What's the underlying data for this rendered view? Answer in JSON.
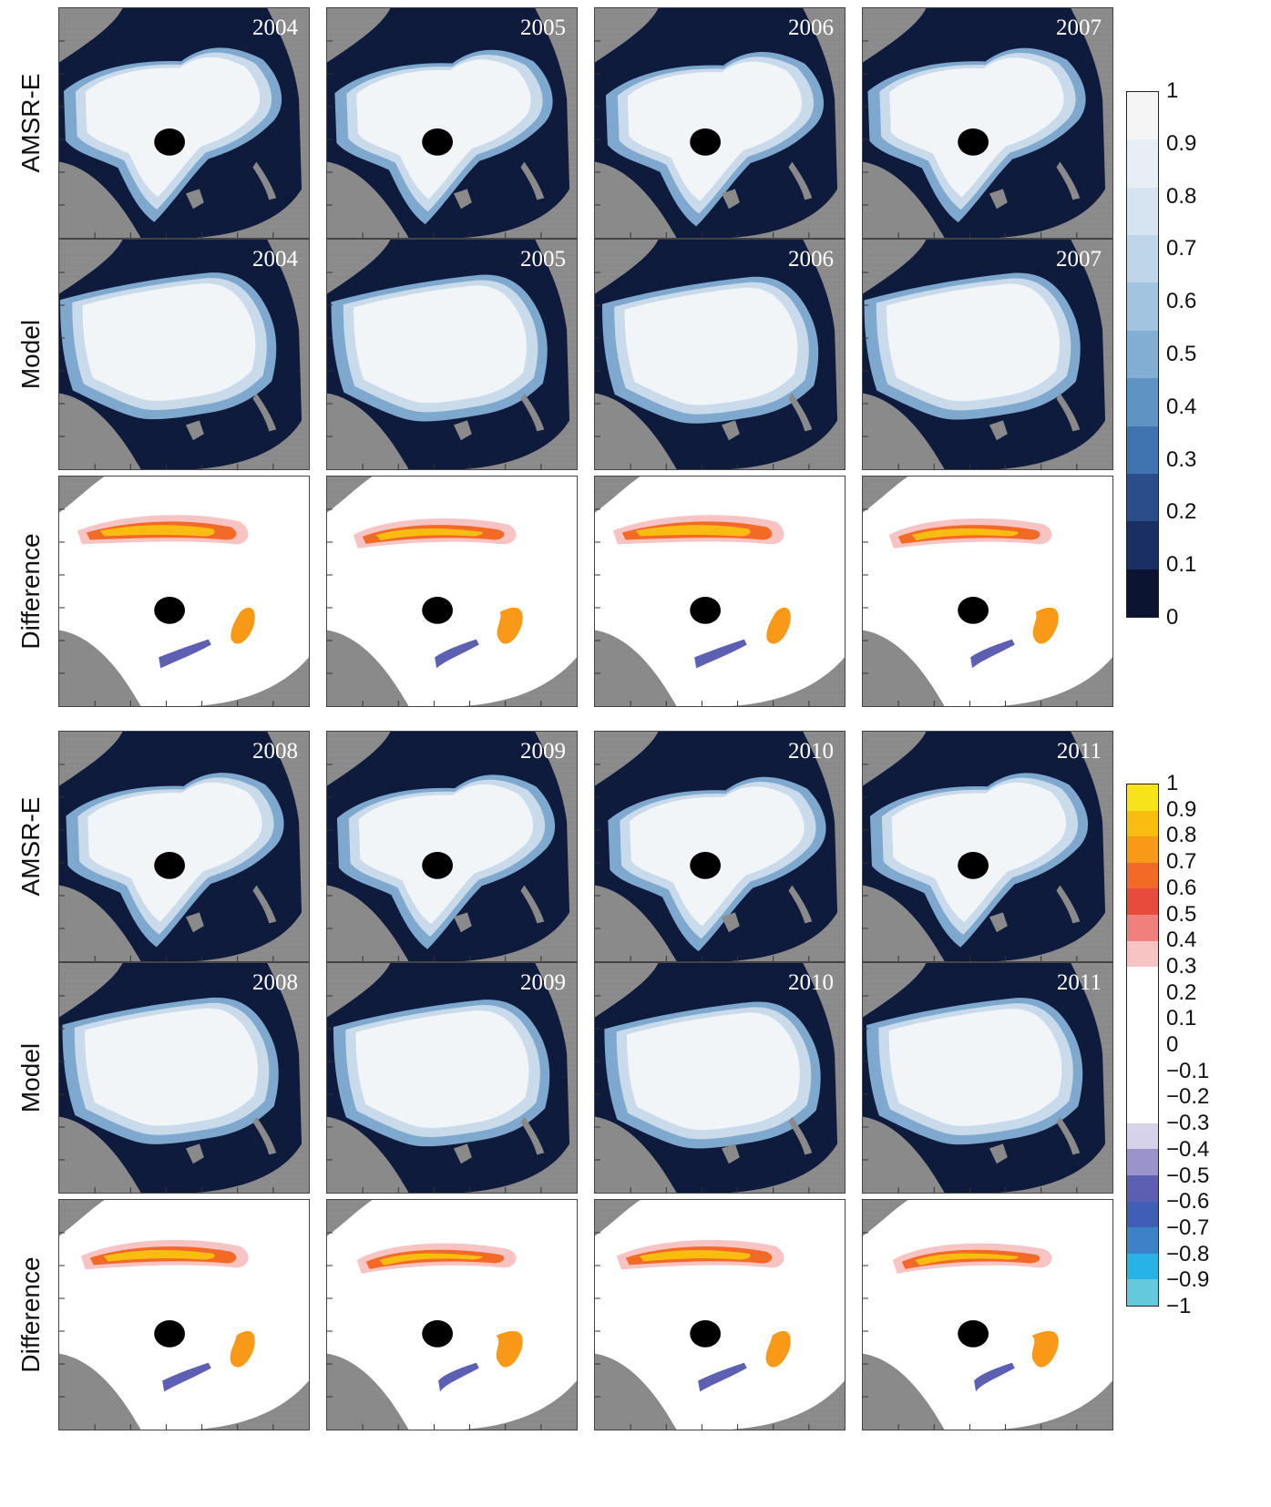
{
  "row_labels": [
    "AMSR-E",
    "Model",
    "Difference"
  ],
  "groups": [
    {
      "years": [
        "2004",
        "2005",
        "2006",
        "2007"
      ]
    },
    {
      "years": [
        "2008",
        "2009",
        "2010",
        "2011"
      ]
    }
  ],
  "colors": {
    "land": "#8a8a8a",
    "ocean": "#0f1b3d",
    "pole_hole": "#000000",
    "ice_high": "#f2f5f8",
    "ice_mid": "#c9daea",
    "ice_low": "#7fa8cf"
  },
  "chart_data": [
    {
      "type": "heatmap",
      "name_hint": "sea ice concentration colorbar",
      "range": [
        0,
        1
      ],
      "tick_labels": [
        "1",
        "0.9",
        "0.8",
        "0.7",
        "0.6",
        "0.5",
        "0.4",
        "0.3",
        "0.2",
        "0.1",
        "0"
      ],
      "colors": [
        "#f5f5f6",
        "#e6eef6",
        "#d6e3f0",
        "#bfd5e9",
        "#a3c4e0",
        "#82aed4",
        "#5f93c4",
        "#3f74ae",
        "#294e8a",
        "#1a2f63",
        "#0b1430"
      ]
    },
    {
      "type": "heatmap",
      "name_hint": "difference colorbar",
      "range": [
        -1,
        1
      ],
      "tick_labels": [
        "1",
        "0.9",
        "0.8",
        "0.7",
        "0.6",
        "0.5",
        "0.4",
        "0.3",
        "0.2",
        "0.1",
        "0",
        "−0.1",
        "−0.2",
        "−0.3",
        "−0.4",
        "−0.5",
        "−0.6",
        "−0.7",
        "−0.8",
        "−0.9",
        "−1"
      ],
      "colors": [
        "#f7e31c",
        "#f9bd12",
        "#f89a18",
        "#f26a25",
        "#e84a3c",
        "#f17f7c",
        "#f7c4c3",
        "#ffffff",
        "#ffffff",
        "#ffffff",
        "#ffffff",
        "#ffffff",
        "#ffffff",
        "#d6d2ea",
        "#9a93cc",
        "#5c5fb2",
        "#3f5fb7",
        "#3b82c9",
        "#26b4e6",
        "#63c9dc"
      ]
    }
  ]
}
